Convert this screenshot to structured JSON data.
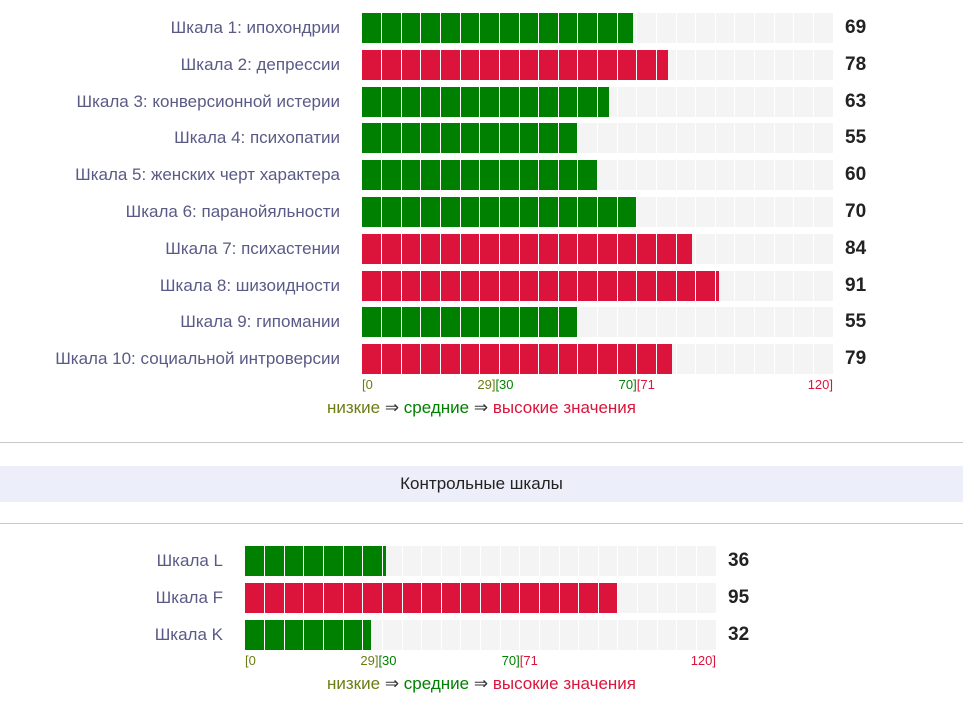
{
  "colors": {
    "normal": "#008000",
    "high": "#dc143c",
    "low": "#6b7d13",
    "track": "#f4f4f4",
    "separator": "#ffffff"
  },
  "control_title": "Контрольные шкалы",
  "legend": {
    "low": "низкие",
    "arrow": "⇒",
    "mid": "средние",
    "high": "высокие значения"
  },
  "chart_data": [
    {
      "type": "bar",
      "orientation": "horizontal",
      "categories": [
        "Шкала 1: ипохондрии",
        "Шкала 2: депрессии",
        "Шкала 3: конверсионной истерии",
        "Шкала 4: психопатии",
        "Шкала 5: женских черт характера",
        "Шкала 6: паранойяльности",
        "Шкала 7: психастении",
        "Шкала 8: шизоидности",
        "Шкала 9: гипомании",
        "Шкала 10: социальной интроверсии"
      ],
      "values": [
        69,
        78,
        63,
        55,
        60,
        70,
        84,
        91,
        55,
        79
      ],
      "xlim": [
        0,
        120
      ],
      "range_labels": [
        "[0",
        "29][30",
        "70][71",
        "120]"
      ],
      "ranges": {
        "low": [
          0,
          29
        ],
        "mid": [
          30,
          70
        ],
        "high": [
          71,
          120
        ]
      }
    },
    {
      "type": "bar",
      "orientation": "horizontal",
      "categories": [
        "Шкала L",
        "Шкала F",
        "Шкала K"
      ],
      "values": [
        36,
        95,
        32
      ],
      "xlim": [
        0,
        120
      ],
      "range_labels": [
        "[0",
        "29][30",
        "70][71",
        "120]"
      ],
      "ranges": {
        "low": [
          0,
          29
        ],
        "mid": [
          30,
          70
        ],
        "high": [
          71,
          120
        ]
      }
    }
  ]
}
